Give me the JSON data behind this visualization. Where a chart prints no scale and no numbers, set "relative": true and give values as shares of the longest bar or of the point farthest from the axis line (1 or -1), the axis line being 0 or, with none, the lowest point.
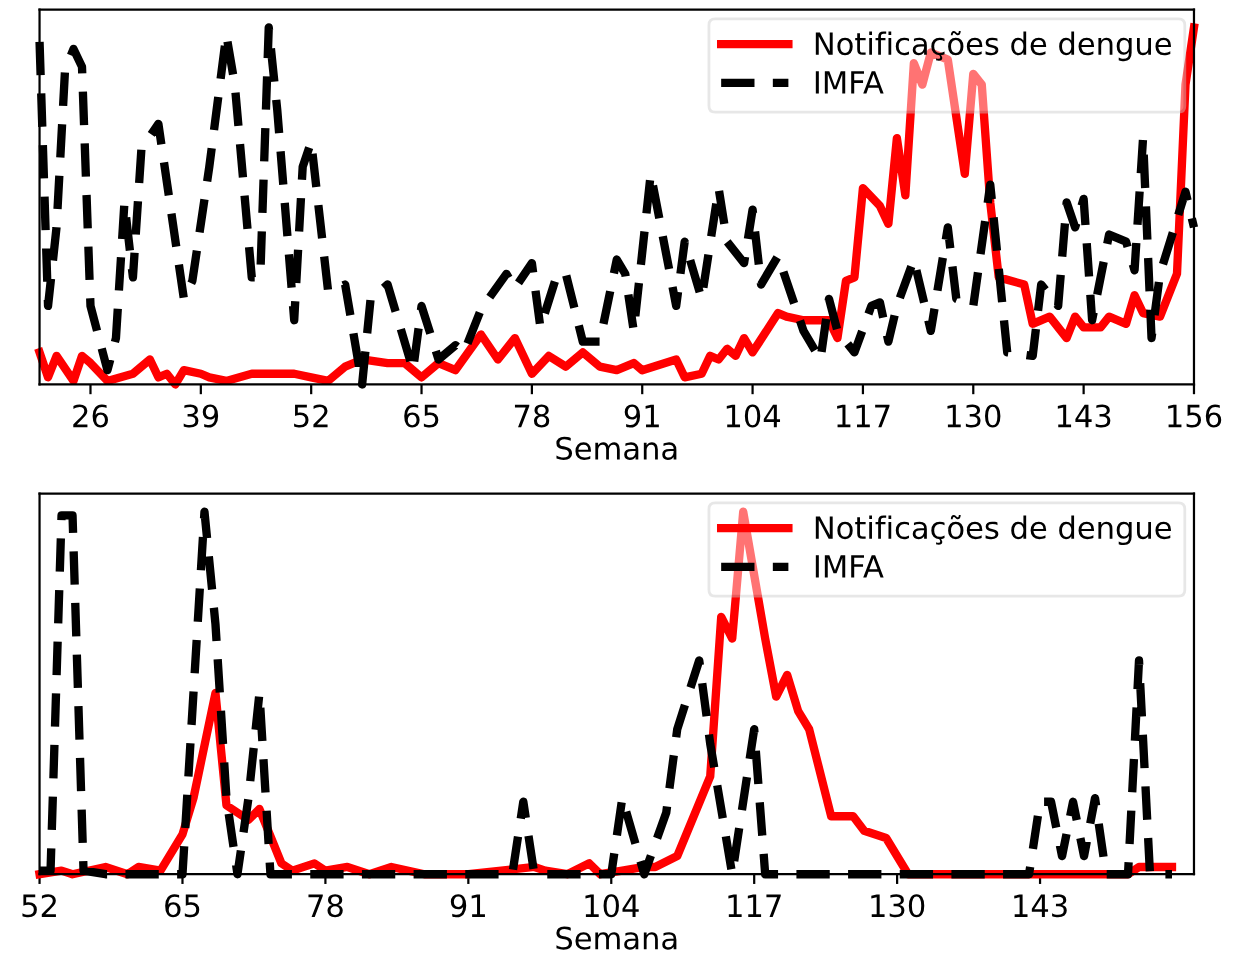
{
  "chart_data": [
    {
      "type": "line",
      "xlabel": "Semana",
      "relative": true,
      "xlim": [
        20,
        156
      ],
      "xticks": [
        26,
        39,
        52,
        65,
        78,
        91,
        104,
        117,
        130,
        143,
        156
      ],
      "tick_labels": "x",
      "grid": false,
      "legend": "top right",
      "series": [
        {
          "name": "Notificações de dengue",
          "color": "#ff0000",
          "line_style": "solid",
          "x": [
            20,
            21,
            22,
            24,
            25,
            26,
            28,
            31,
            33,
            34,
            35,
            36,
            37,
            39,
            40,
            42,
            45,
            47,
            50,
            52,
            54,
            56,
            58,
            61,
            63,
            65,
            67,
            69,
            72,
            74,
            76,
            78,
            80,
            82,
            84,
            86,
            88,
            90,
            91,
            95,
            96,
            98,
            99,
            100,
            101,
            102,
            103,
            104,
            107,
            108,
            110,
            112,
            113,
            114,
            115,
            116,
            117,
            119,
            120,
            121,
            122,
            123,
            124,
            125,
            127,
            129,
            130,
            131,
            132,
            133,
            136,
            137,
            139,
            141,
            142,
            143,
            145,
            146,
            148,
            149,
            150,
            152,
            154,
            155,
            156
          ],
          "values": [
            0.09,
            0.02,
            0.08,
            0.01,
            0.08,
            0.06,
            0.01,
            0.03,
            0.07,
            0.02,
            0.03,
            0.0,
            0.04,
            0.03,
            0.02,
            0.01,
            0.03,
            0.03,
            0.03,
            0.02,
            0.01,
            0.05,
            0.07,
            0.06,
            0.06,
            0.02,
            0.06,
            0.04,
            0.14,
            0.07,
            0.13,
            0.03,
            0.08,
            0.05,
            0.09,
            0.05,
            0.04,
            0.06,
            0.04,
            0.07,
            0.02,
            0.03,
            0.08,
            0.07,
            0.1,
            0.08,
            0.13,
            0.09,
            0.2,
            0.19,
            0.18,
            0.18,
            0.18,
            0.13,
            0.29,
            0.3,
            0.55,
            0.5,
            0.45,
            0.69,
            0.53,
            0.9,
            0.84,
            0.93,
            0.91,
            0.59,
            0.87,
            0.84,
            0.51,
            0.3,
            0.28,
            0.17,
            0.19,
            0.13,
            0.19,
            0.16,
            0.16,
            0.19,
            0.17,
            0.25,
            0.2,
            0.19,
            0.31,
            0.84,
            1.0
          ]
        },
        {
          "name": "IMFA",
          "color": "#000000",
          "line_style": "dashed",
          "x": [
            20,
            21,
            22,
            23,
            24,
            25,
            26,
            28,
            29,
            30,
            31,
            32,
            34,
            37,
            38,
            40,
            42,
            43,
            45,
            46,
            47,
            48,
            50,
            51,
            52,
            54,
            56,
            58,
            59,
            61,
            64,
            65,
            67,
            69,
            70,
            72,
            75,
            76,
            78,
            79,
            81,
            82,
            84,
            86,
            88,
            89,
            90,
            92,
            95,
            96,
            98,
            100,
            101,
            103,
            104,
            105,
            107,
            109,
            110,
            112,
            113,
            114,
            116,
            118,
            119,
            120,
            121,
            123,
            125,
            127,
            128,
            130,
            132,
            134,
            137,
            138,
            140,
            141,
            142,
            143,
            144,
            146,
            148,
            149,
            150,
            151,
            152,
            155,
            156
          ],
          "values": [
            0.96,
            0.22,
            0.44,
            0.88,
            0.94,
            0.89,
            0.22,
            0.04,
            0.13,
            0.51,
            0.3,
            0.66,
            0.73,
            0.24,
            0.29,
            0.61,
            0.98,
            0.84,
            0.3,
            0.3,
            1.0,
            0.77,
            0.18,
            0.61,
            0.68,
            0.26,
            0.28,
            0.0,
            0.24,
            0.28,
            0.04,
            0.22,
            0.07,
            0.11,
            0.09,
            0.21,
            0.31,
            0.27,
            0.34,
            0.16,
            0.31,
            0.31,
            0.12,
            0.12,
            0.35,
            0.31,
            0.15,
            0.59,
            0.22,
            0.4,
            0.24,
            0.55,
            0.4,
            0.34,
            0.49,
            0.28,
            0.36,
            0.22,
            0.15,
            0.07,
            0.24,
            0.15,
            0.09,
            0.22,
            0.23,
            0.12,
            0.22,
            0.35,
            0.15,
            0.44,
            0.24,
            0.22,
            0.56,
            0.09,
            0.08,
            0.28,
            0.22,
            0.51,
            0.44,
            0.52,
            0.18,
            0.42,
            0.4,
            0.32,
            0.69,
            0.13,
            0.31,
            0.54,
            0.44
          ]
        }
      ]
    },
    {
      "type": "line",
      "xlabel": "Semana",
      "relative": true,
      "xlim": [
        52,
        157
      ],
      "xticks": [
        52,
        65,
        78,
        91,
        104,
        117,
        130,
        143
      ],
      "tick_labels": "x",
      "grid": false,
      "legend": "top right",
      "series": [
        {
          "name": "Notificações de dengue",
          "color": "#ff0000",
          "line_style": "solid",
          "x": [
            52,
            54,
            55,
            58,
            60,
            61,
            63,
            65,
            66,
            68,
            69,
            71,
            72,
            74,
            75,
            77,
            78,
            80,
            82,
            84,
            87,
            91,
            94,
            97,
            98,
            100,
            102,
            103,
            105,
            107,
            108,
            110,
            113,
            114,
            115,
            116,
            118,
            119,
            120,
            121,
            122,
            124,
            126,
            127,
            129,
            131,
            140,
            147,
            151,
            152,
            155
          ],
          "values": [
            0.0,
            0.01,
            0.0,
            0.02,
            0.0,
            0.02,
            0.01,
            0.11,
            0.21,
            0.5,
            0.19,
            0.15,
            0.18,
            0.03,
            0.01,
            0.03,
            0.01,
            0.02,
            0.0,
            0.02,
            0.0,
            0.0,
            0.01,
            0.02,
            0.01,
            0.0,
            0.03,
            0.0,
            0.01,
            0.02,
            0.02,
            0.05,
            0.27,
            0.71,
            0.65,
            1.0,
            0.65,
            0.49,
            0.55,
            0.45,
            0.4,
            0.16,
            0.16,
            0.12,
            0.1,
            0.0,
            0.0,
            0.0,
            0.0,
            0.02,
            0.02
          ]
        },
        {
          "name": "IMFA",
          "color": "#000000",
          "line_style": "dashed",
          "x": [
            52,
            53,
            54,
            55,
            56,
            58,
            65,
            67,
            68,
            69,
            70,
            71,
            72,
            73,
            95,
            96,
            97,
            104,
            105,
            107,
            109,
            110,
            112,
            113,
            115,
            117,
            118,
            142,
            143,
            144,
            145,
            146,
            147,
            148,
            149,
            151,
            152,
            153,
            155
          ],
          "values": [
            0.01,
            0.01,
            0.99,
            0.99,
            0.01,
            0.0,
            0.0,
            1.0,
            0.69,
            0.21,
            0.0,
            0.21,
            0.5,
            0.0,
            0.0,
            0.2,
            0.0,
            0.0,
            0.21,
            0.0,
            0.17,
            0.4,
            0.59,
            0.36,
            0.0,
            0.4,
            0.0,
            0.0,
            0.2,
            0.2,
            0.05,
            0.2,
            0.05,
            0.21,
            0.0,
            0.0,
            0.59,
            0.0,
            0.0
          ]
        }
      ]
    }
  ]
}
